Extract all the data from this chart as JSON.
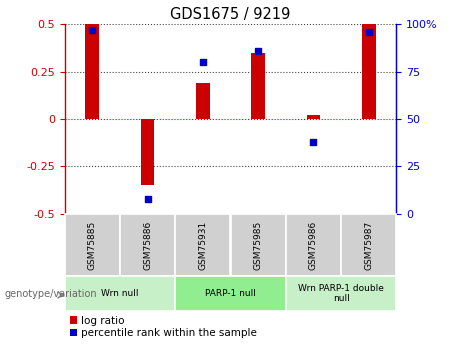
{
  "title": "GDS1675 / 9219",
  "samples": [
    "GSM75885",
    "GSM75886",
    "GSM75931",
    "GSM75985",
    "GSM75986",
    "GSM75987"
  ],
  "log_ratio": [
    0.5,
    -0.35,
    0.19,
    0.35,
    0.02,
    0.5
  ],
  "percentile_rank": [
    97,
    8,
    80,
    86,
    38,
    96
  ],
  "groups": [
    {
      "label": "Wrn null",
      "start": 0,
      "end": 2
    },
    {
      "label": "PARP-1 null",
      "start": 2,
      "end": 4
    },
    {
      "label": "Wrn PARP-1 double\nnull",
      "start": 4,
      "end": 6
    }
  ],
  "bar_color": "#cc0000",
  "dot_color": "#0000cc",
  "ylim": [
    -0.5,
    0.5
  ],
  "yticks_left": [
    -0.5,
    -0.25,
    0.0,
    0.25,
    0.5
  ],
  "yticks_right_labels": [
    "0",
    "25",
    "50",
    "75",
    "100%"
  ],
  "group_colors": [
    "#c8f0c8",
    "#90ee90",
    "#c8f0c8"
  ],
  "sample_box_color": "#d0d0d0",
  "legend_red_label": "log ratio",
  "legend_blue_label": "percentile rank within the sample",
  "genotype_label": "genotype/variation",
  "hline_color_zero": "#cc0000",
  "hline_color_other": "#444444"
}
